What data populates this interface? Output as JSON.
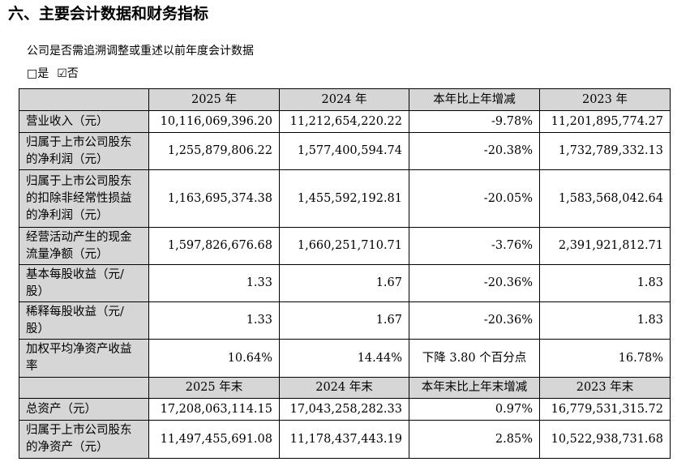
{
  "title": "六、主要会计数据和财务指标",
  "question": "公司是否需追溯调整或重述以前年度会计数据",
  "options": [
    "□是",
    "☑否"
  ],
  "sections": [
    {
      "header": [
        "2025 年",
        "2024 年",
        "本年比上年增减",
        "2023 年"
      ],
      "rows": [
        [
          "营业收入（元）",
          "10,116,069,396.20",
          "11,212,654,220.22",
          "-9.78%",
          "11,201,895,774.27"
        ],
        [
          "归属于上市公司股东的净利润（元）",
          "1,255,879,806.22",
          "1,577,400,594.74",
          "-20.38%",
          "1,732,789,332.13"
        ],
        [
          "归属于上市公司股东的扣除非经常性损益的净利润（元）",
          "1,163,695,374.38",
          "1,455,592,192.81",
          "-20.05%",
          "1,583,568,042.64"
        ],
        [
          "经营活动产生的现金流量净额（元）",
          "1,597,826,676.68",
          "1,660,251,710.71",
          "-3.76%",
          "2,391,921,812.71"
        ],
        [
          "基本每股收益（元/股）",
          "1.33",
          "1.67",
          "-20.36%",
          "1.83"
        ],
        [
          "稀释每股收益（元/股）",
          "1.33",
          "1.67",
          "-20.36%",
          "1.83"
        ],
        [
          "加权平均净资产收益率",
          "10.64%",
          "14.44%",
          "下降 3.80 个百分点",
          "16.78%"
        ]
      ]
    },
    {
      "header": [
        "2025 年末",
        "2024 年末",
        "本年末比上年末增减",
        "2023 年末"
      ],
      "rows": [
        [
          "总资产（元）",
          "17,208,063,114.15",
          "17,043,258,282.33",
          "0.97%",
          "16,779,531,315.72"
        ],
        [
          "归属于上市公司股东的净资产（元）",
          "11,497,455,691.08",
          "11,178,437,443.19",
          "2.85%",
          "10,522,938,731.68"
        ]
      ]
    }
  ]
}
